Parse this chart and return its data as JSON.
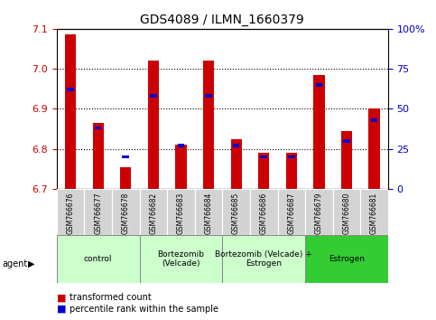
{
  "title": "GDS4089 / ILMN_1660379",
  "samples": [
    "GSM766676",
    "GSM766677",
    "GSM766678",
    "GSM766682",
    "GSM766683",
    "GSM766684",
    "GSM766685",
    "GSM766686",
    "GSM766687",
    "GSM766679",
    "GSM766680",
    "GSM766681"
  ],
  "transformed_count": [
    7.085,
    6.865,
    6.755,
    7.02,
    6.81,
    7.02,
    6.825,
    6.79,
    6.79,
    6.985,
    6.845,
    6.9
  ],
  "percentile_rank": [
    62,
    38,
    20,
    58,
    27,
    58,
    27,
    20,
    20,
    65,
    30,
    43
  ],
  "ylim_left": [
    6.7,
    7.1
  ],
  "ylim_right": [
    0,
    100
  ],
  "yticks_left": [
    6.7,
    6.8,
    6.9,
    7.0,
    7.1
  ],
  "yticks_right": [
    0,
    25,
    50,
    75,
    100
  ],
  "ytick_labels_right": [
    "0",
    "25",
    "50",
    "75",
    "100%"
  ],
  "groups": [
    {
      "label": "control",
      "start": 0,
      "end": 3,
      "color": "#ccffcc"
    },
    {
      "label": "Bortezomib\n(Velcade)",
      "start": 3,
      "end": 6,
      "color": "#ccffcc"
    },
    {
      "label": "Bortezomib (Velcade) +\nEstrogen",
      "start": 6,
      "end": 9,
      "color": "#ccffcc"
    },
    {
      "label": "Estrogen",
      "start": 9,
      "end": 12,
      "color": "#33cc33"
    }
  ],
  "bar_color_red": "#cc0000",
  "bar_color_blue": "#0000cc",
  "bar_width": 0.4,
  "blue_bar_width": 0.25,
  "agent_label": "agent",
  "legend_labels": [
    "transformed count",
    "percentile rank within the sample"
  ],
  "tick_label_color_left": "#cc0000",
  "tick_label_color_right": "#0000cc",
  "group_border_color": "#888888",
  "sample_box_color": "#d3d3d3"
}
